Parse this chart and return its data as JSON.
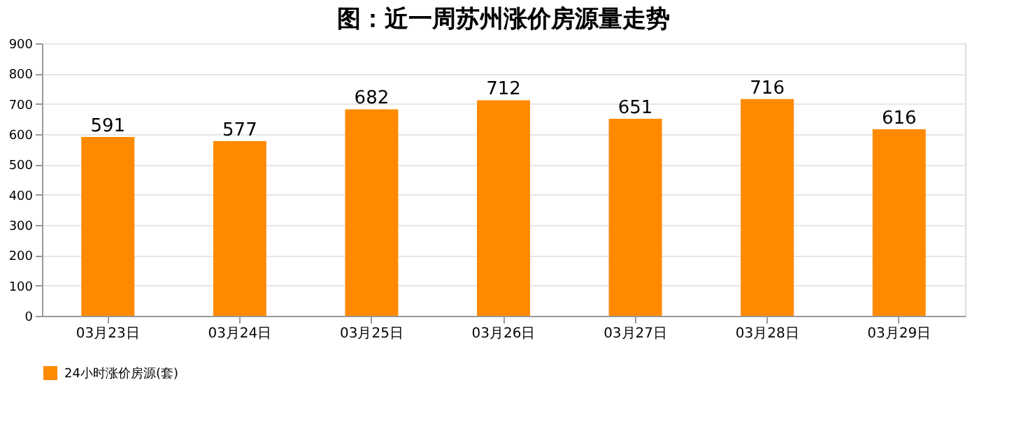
{
  "chart_data": {
    "type": "bar",
    "title": "图：近一周苏州涨价房源量走势",
    "categories": [
      "03月23日",
      "03月24日",
      "03月25日",
      "03月26日",
      "03月27日",
      "03月28日",
      "03月29日"
    ],
    "series": [
      {
        "name": "24小时涨价房源(套)",
        "color": "#ff8a00",
        "values": [
          591,
          577,
          682,
          712,
          651,
          716,
          616
        ]
      }
    ],
    "ylim": [
      0,
      900
    ],
    "yticks": [
      0,
      100,
      200,
      300,
      400,
      500,
      600,
      700,
      800,
      900
    ],
    "grid": "y",
    "legend": "bottom",
    "data_labels": true
  }
}
